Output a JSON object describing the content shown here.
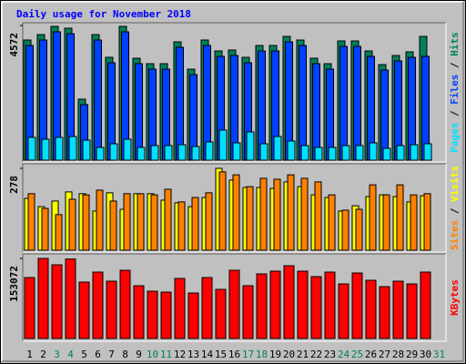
{
  "chart_data": [
    {
      "type": "bar",
      "title": "Daily usage for November 2018",
      "categories": [
        "1",
        "2",
        "3",
        "4",
        "5",
        "6",
        "7",
        "8",
        "9",
        "10",
        "11",
        "12",
        "13",
        "14",
        "15",
        "16",
        "17",
        "18",
        "19",
        "20",
        "21",
        "22",
        "23",
        "24",
        "25",
        "26",
        "27",
        "28",
        "29",
        "30",
        "31"
      ],
      "category_colors": [
        "#000000",
        "#000000",
        "#00805c",
        "#00805c",
        "#000000",
        "#000000",
        "#000000",
        "#000000",
        "#000000",
        "#00805c",
        "#00805c",
        "#000000",
        "#000000",
        "#000000",
        "#000000",
        "#000000",
        "#00805c",
        "#00805c",
        "#000000",
        "#000000",
        "#000000",
        "#000000",
        "#000000",
        "#00805c",
        "#00805c",
        "#000000",
        "#000000",
        "#000000",
        "#000000",
        "#000000",
        "#00805c"
      ],
      "legend_separator": "/",
      "ylim": [
        0,
        4572
      ],
      "yticks": [
        4572
      ],
      "series": [
        {
          "name": "Pages",
          "color": "#00e0ff",
          "values": [
            773,
            711,
            773,
            803,
            680,
            433,
            556,
            711,
            433,
            494,
            494,
            525,
            464,
            618,
            1020,
            587,
            958,
            556,
            803,
            649,
            494,
            433,
            433,
            494,
            494,
            587,
            402,
            494,
            525,
            556,
            null
          ]
        },
        {
          "name": "Files",
          "color": "#0040ff",
          "values": [
            3893,
            4078,
            4356,
            4294,
            1885,
            4078,
            3306,
            4356,
            3275,
            3090,
            3090,
            3831,
            2904,
            3893,
            3522,
            3553,
            3306,
            3707,
            3707,
            4016,
            3893,
            3275,
            3090,
            3862,
            3862,
            3522,
            3059,
            3368,
            3491,
            3523,
            null
          ]
        },
        {
          "name": "Hits",
          "color": "#00805c",
          "values": [
            4078,
            4263,
            4541,
            4479,
            2070,
            4263,
            3491,
            4541,
            3460,
            3275,
            3275,
            4016,
            3089,
            4078,
            3707,
            3738,
            3491,
            3892,
            3892,
            4201,
            4078,
            3460,
            3275,
            4047,
            4047,
            3707,
            3244,
            3553,
            3676,
            4201,
            null
          ]
        }
      ]
    },
    {
      "type": "bar",
      "legend_separator": "/",
      "ylim": [
        0,
        278
      ],
      "yticks": [
        278
      ],
      "series": [
        {
          "name": "Sites",
          "color": "#ff8000",
          "values": [
            192,
            142,
            121,
            173,
            188,
            204,
            167,
            192,
            192,
            188,
            207,
            164,
            179,
            195,
            266,
            256,
            216,
            244,
            241,
            256,
            244,
            232,
            188,
            136,
            139,
            222,
            188,
            222,
            188,
            192,
            null
          ]
        },
        {
          "name": "Visits",
          "color": "#ffff00",
          "values": [
            176,
            148,
            167,
            198,
            192,
            133,
            195,
            139,
            192,
            192,
            170,
            161,
            148,
            179,
            278,
            238,
            213,
            213,
            210,
            232,
            216,
            188,
            179,
            133,
            151,
            182,
            188,
            182,
            164,
            185,
            null
          ]
        }
      ]
    },
    {
      "type": "bar",
      "ylim": [
        0,
        153072
      ],
      "yticks": [
        153072
      ],
      "series": [
        {
          "name": "KBytes",
          "color": "#ff0000",
          "values": [
            116546,
            153072,
            140900,
            152000,
            107850,
            126980,
            109590,
            130460,
            100890,
            90450,
            88710,
            114810,
            86980,
            116550,
            93930,
            130460,
            100890,
            123500,
            128720,
            139160,
            128720,
            118290,
            126980,
            104370,
            125240,
            111330,
            99150,
            109590,
            104370,
            126980,
            null
          ]
        }
      ]
    }
  ]
}
